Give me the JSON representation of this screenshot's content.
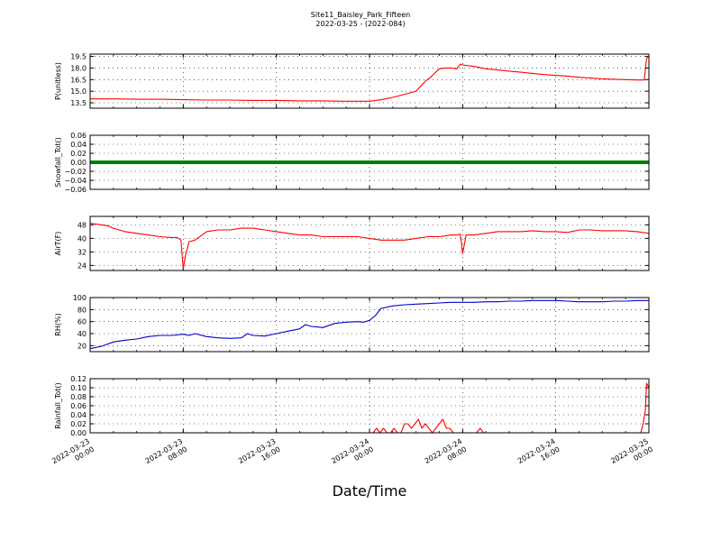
{
  "figure": {
    "title_line1": "Site11_Baisley_Park_Fifteen",
    "title_line2": "2022-03-25 - (2022-084)",
    "xlabel": "Date/Time"
  },
  "x_axis": {
    "range_hours": [
      0,
      48
    ],
    "ticks": [
      {
        "h": 0,
        "line1": "2022-03-23",
        "line2": "00:00"
      },
      {
        "h": 8,
        "line1": "2022-03-23",
        "line2": "08:00"
      },
      {
        "h": 16,
        "line1": "2022-03-23",
        "line2": "16:00"
      },
      {
        "h": 24,
        "line1": "2022-03-24",
        "line2": "00:00"
      },
      {
        "h": 32,
        "line1": "2022-03-24",
        "line2": "08:00"
      },
      {
        "h": 40,
        "line1": "2022-03-24",
        "line2": "16:00"
      },
      {
        "h": 48,
        "line1": "2022-03-25",
        "line2": "00:00"
      }
    ]
  },
  "chart_data": [
    {
      "type": "line",
      "ylabel": "P(unitless)",
      "ylim": [
        12.8,
        19.8
      ],
      "yticks": [
        13.5,
        15.0,
        16.5,
        18.0,
        19.5
      ],
      "ytick_labels": [
        "13.5",
        "15.0",
        "16.5",
        "18.0",
        "19.5"
      ],
      "color": "#ff0000",
      "grid": true,
      "series": [
        {
          "x": [
            0,
            2,
            4,
            6,
            8,
            10,
            12,
            14,
            16,
            18,
            20,
            22,
            24,
            25,
            26,
            27,
            28,
            28.8,
            29.3,
            30,
            30.5,
            31,
            31.5,
            31.8,
            32,
            33,
            34,
            35,
            36,
            37,
            38,
            39,
            40,
            41,
            42,
            43,
            44,
            45,
            46,
            47,
            47.6,
            47.8,
            48
          ],
          "y": [
            14.0,
            14.0,
            13.95,
            13.95,
            13.9,
            13.85,
            13.85,
            13.8,
            13.8,
            13.75,
            13.75,
            13.7,
            13.7,
            13.9,
            14.2,
            14.6,
            15.0,
            16.3,
            16.9,
            17.9,
            18.0,
            18.0,
            17.9,
            18.5,
            18.4,
            18.2,
            17.9,
            17.75,
            17.6,
            17.45,
            17.3,
            17.15,
            17.05,
            16.95,
            16.8,
            16.7,
            16.6,
            16.55,
            16.5,
            16.45,
            16.45,
            19.2,
            19.6
          ]
        }
      ]
    },
    {
      "type": "line",
      "ylabel": "Snowfall_Tot()",
      "ylim": [
        -0.06,
        0.06
      ],
      "yticks": [
        -0.06,
        -0.04,
        -0.02,
        0.0,
        0.02,
        0.04,
        0.06
      ],
      "ytick_labels": [
        "−0.06",
        "−0.04",
        "−0.02",
        "0.00",
        "0.02",
        "0.04",
        "0.06"
      ],
      "color": "#008000",
      "grid": true,
      "series": [
        {
          "x": [
            0,
            48
          ],
          "y": [
            0,
            0
          ]
        }
      ]
    },
    {
      "type": "line",
      "ylabel": "AirT(F)",
      "ylim": [
        21,
        53
      ],
      "yticks": [
        24,
        32,
        40,
        48
      ],
      "ytick_labels": [
        "24",
        "32",
        "40",
        "48"
      ],
      "color": "#ff0000",
      "grid": true,
      "series": [
        {
          "x": [
            0,
            1,
            1.5,
            2,
            3,
            4,
            5,
            6,
            7,
            7.5,
            7.8,
            8,
            8.2,
            8.5,
            9,
            10,
            11,
            12,
            13,
            14,
            15,
            16,
            17,
            18,
            19,
            20,
            21,
            22,
            23,
            24,
            25,
            26,
            27,
            28,
            29,
            30,
            31,
            31.5,
            31.8,
            32,
            32.3,
            33,
            34,
            35,
            36,
            37,
            38,
            39,
            40,
            41,
            42,
            43,
            44,
            45,
            46,
            47,
            48
          ],
          "y": [
            49,
            48,
            47.5,
            46,
            44,
            43,
            42,
            41,
            40.5,
            40.5,
            39,
            22,
            30,
            38,
            39,
            44,
            45,
            45,
            46,
            46,
            45,
            44,
            43,
            42,
            42,
            41,
            41,
            41,
            41,
            40,
            39,
            39,
            39,
            40,
            41,
            41,
            42,
            42,
            42.5,
            31,
            42,
            42,
            43,
            44,
            44,
            44,
            44.5,
            44,
            44,
            43.5,
            45,
            45,
            44.5,
            44.5,
            44.5,
            44,
            43
          ]
        }
      ]
    },
    {
      "type": "line",
      "ylabel": "RH(%)",
      "ylim": [
        10,
        100
      ],
      "yticks": [
        20,
        40,
        60,
        80,
        100
      ],
      "ytick_labels": [
        "20",
        "40",
        "60",
        "80",
        "100"
      ],
      "color": "#0000cc",
      "grid": true,
      "series": [
        {
          "x": [
            0,
            1,
            2,
            3,
            4,
            5,
            6,
            7,
            8,
            8.5,
            9,
            10,
            11,
            12,
            13,
            13.5,
            14,
            15,
            16,
            17,
            18,
            18.5,
            19,
            20,
            21,
            22,
            23,
            23.5,
            24,
            24.5,
            25,
            26,
            27,
            28,
            29,
            30,
            31,
            32,
            33,
            34,
            35,
            36,
            37,
            38,
            39,
            40,
            41,
            42,
            43,
            44,
            45,
            46,
            47,
            48
          ],
          "y": [
            15,
            19,
            26,
            29,
            31,
            35,
            37,
            37,
            39,
            37,
            40,
            35,
            33,
            32,
            33,
            40,
            37,
            36,
            40,
            44,
            48,
            55,
            52,
            50,
            57,
            59,
            60,
            59,
            62,
            70,
            82,
            86,
            88,
            89,
            90,
            91,
            92,
            92,
            92,
            93,
            93,
            94,
            94,
            95,
            95,
            95,
            94,
            93,
            93,
            93,
            94,
            94,
            95,
            95
          ]
        }
      ]
    },
    {
      "type": "line",
      "ylabel": "Rainfall_Tot()",
      "ylim": [
        0,
        0.12
      ],
      "yticks": [
        0.0,
        0.02,
        0.04,
        0.06,
        0.08,
        0.1,
        0.12
      ],
      "ytick_labels": [
        "0.00",
        "0.02",
        "0.04",
        "0.06",
        "0.08",
        "0.10",
        "0.12"
      ],
      "color": "#ff0000",
      "grid": true,
      "series": [
        {
          "x": [
            0,
            24.3,
            24.6,
            24.9,
            25.2,
            25.5,
            25.8,
            26.1,
            26.4,
            26.7,
            27,
            27.3,
            27.6,
            27.9,
            28.2,
            28.5,
            28.8,
            29.1,
            29.4,
            29.7,
            30,
            30.3,
            30.6,
            30.9,
            31.2,
            31.5,
            31.8,
            32,
            32.3,
            32.6,
            32.9,
            33.2,
            33.5,
            33.8,
            34.1,
            47.3,
            47.5,
            47.7,
            47.8,
            48
          ],
          "y": [
            0,
            0,
            0.01,
            0,
            0.01,
            0,
            0,
            0.01,
            0,
            0,
            0.02,
            0.02,
            0.01,
            0.02,
            0.03,
            0.01,
            0.02,
            0.01,
            0,
            0.01,
            0.02,
            0.03,
            0.01,
            0.01,
            0,
            0,
            0,
            0,
            0,
            0,
            0,
            0,
            0.01,
            0,
            0,
            0,
            0.02,
            0.05,
            0.11,
            0.1
          ]
        }
      ]
    }
  ]
}
